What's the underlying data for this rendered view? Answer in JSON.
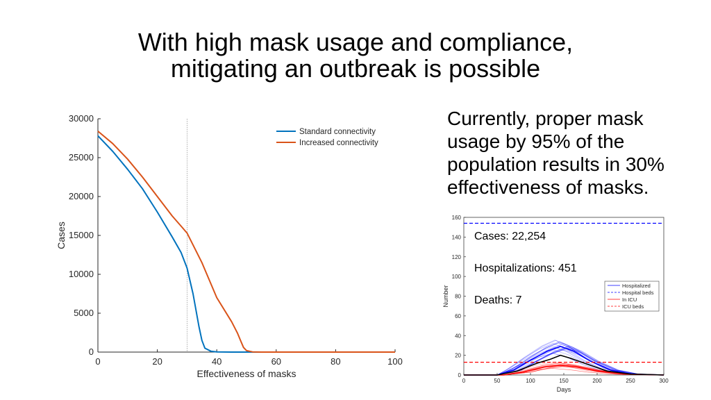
{
  "slide": {
    "title_line1": "With high mask usage and compliance,",
    "title_line2": "mitigating an outbreak is possible",
    "note": "Currently, proper mask usage by 95% of the population results in 30% effectiveness of masks."
  },
  "chart_data": [
    {
      "type": "line",
      "title": "",
      "xlabel": "Effectiveness of masks",
      "ylabel": "Cases",
      "xlim": [
        0,
        100
      ],
      "ylim": [
        0,
        30000
      ],
      "xticks": [
        0,
        20,
        40,
        60,
        80,
        100
      ],
      "yticks": [
        0,
        5000,
        10000,
        15000,
        20000,
        25000,
        30000
      ],
      "reference_line_x": 30,
      "legend_position": "top-right",
      "grid": false,
      "series": [
        {
          "name": "Standard connectivity",
          "color": "#0072BD",
          "points": [
            [
              0,
              27800
            ],
            [
              5,
              25800
            ],
            [
              10,
              23500
            ],
            [
              15,
              21000
            ],
            [
              20,
              18000
            ],
            [
              25,
              14800
            ],
            [
              28,
              12800
            ],
            [
              30,
              10800
            ],
            [
              32,
              7500
            ],
            [
              34,
              3300
            ],
            [
              35,
              1500
            ],
            [
              36,
              500
            ],
            [
              38,
              120
            ],
            [
              40,
              30
            ],
            [
              45,
              0
            ],
            [
              60,
              0
            ],
            [
              80,
              0
            ],
            [
              100,
              0
            ]
          ]
        },
        {
          "name": "Increased connectivity",
          "color": "#D95319",
          "points": [
            [
              0,
              28400
            ],
            [
              5,
              26800
            ],
            [
              10,
              24800
            ],
            [
              15,
              22500
            ],
            [
              20,
              20000
            ],
            [
              25,
              17500
            ],
            [
              28,
              16200
            ],
            [
              30,
              15300
            ],
            [
              35,
              11500
            ],
            [
              40,
              7000
            ],
            [
              45,
              3900
            ],
            [
              47,
              2400
            ],
            [
              48,
              1500
            ],
            [
              49,
              600
            ],
            [
              50,
              200
            ],
            [
              52,
              30
            ],
            [
              55,
              0
            ],
            [
              70,
              0
            ],
            [
              100,
              0
            ]
          ]
        }
      ]
    },
    {
      "type": "line",
      "title": "",
      "xlabel": "Days",
      "ylabel": "Number",
      "xlim": [
        0,
        300
      ],
      "ylim": [
        0,
        160
      ],
      "xticks": [
        0,
        50,
        100,
        150,
        200,
        250,
        300
      ],
      "yticks": [
        0,
        20,
        40,
        60,
        80,
        100,
        120,
        140,
        160
      ],
      "legend_position": "right",
      "annotations": [
        "Cases: 22,254",
        "Hospitalizations: 451",
        "Deaths: 7"
      ],
      "series": [
        {
          "name": "Hospitalized",
          "color": "#0000FF",
          "style": "solid",
          "points": [
            [
              0,
              0
            ],
            [
              50,
              0
            ],
            [
              75,
              5
            ],
            [
              100,
              15
            ],
            [
              125,
              24
            ],
            [
              145,
              29
            ],
            [
              165,
              24
            ],
            [
              190,
              14
            ],
            [
              220,
              5
            ],
            [
              250,
              1
            ],
            [
              300,
              0
            ]
          ]
        },
        {
          "name": "Hospital beds",
          "color": "#0000FF",
          "style": "dashed",
          "points": [
            [
              0,
              154
            ],
            [
              300,
              154
            ]
          ]
        },
        {
          "name": "In ICU",
          "color": "#FF0000",
          "style": "solid",
          "points": [
            [
              0,
              0
            ],
            [
              60,
              0
            ],
            [
              90,
              3
            ],
            [
              120,
              8
            ],
            [
              145,
              10
            ],
            [
              170,
              8
            ],
            [
              200,
              4
            ],
            [
              240,
              1
            ],
            [
              300,
              0
            ]
          ]
        },
        {
          "name": "ICU beds",
          "color": "#FF0000",
          "style": "dashed",
          "points": [
            [
              0,
              13
            ],
            [
              300,
              13
            ]
          ]
        },
        {
          "name": "",
          "color": "#000000",
          "style": "solid",
          "points": [
            [
              0,
              0
            ],
            [
              50,
              0
            ],
            [
              80,
              4
            ],
            [
              110,
              12
            ],
            [
              130,
              16
            ],
            [
              145,
              20
            ],
            [
              160,
              17
            ],
            [
              185,
              11
            ],
            [
              215,
              4
            ],
            [
              250,
              1
            ],
            [
              300,
              0
            ]
          ]
        }
      ]
    }
  ]
}
